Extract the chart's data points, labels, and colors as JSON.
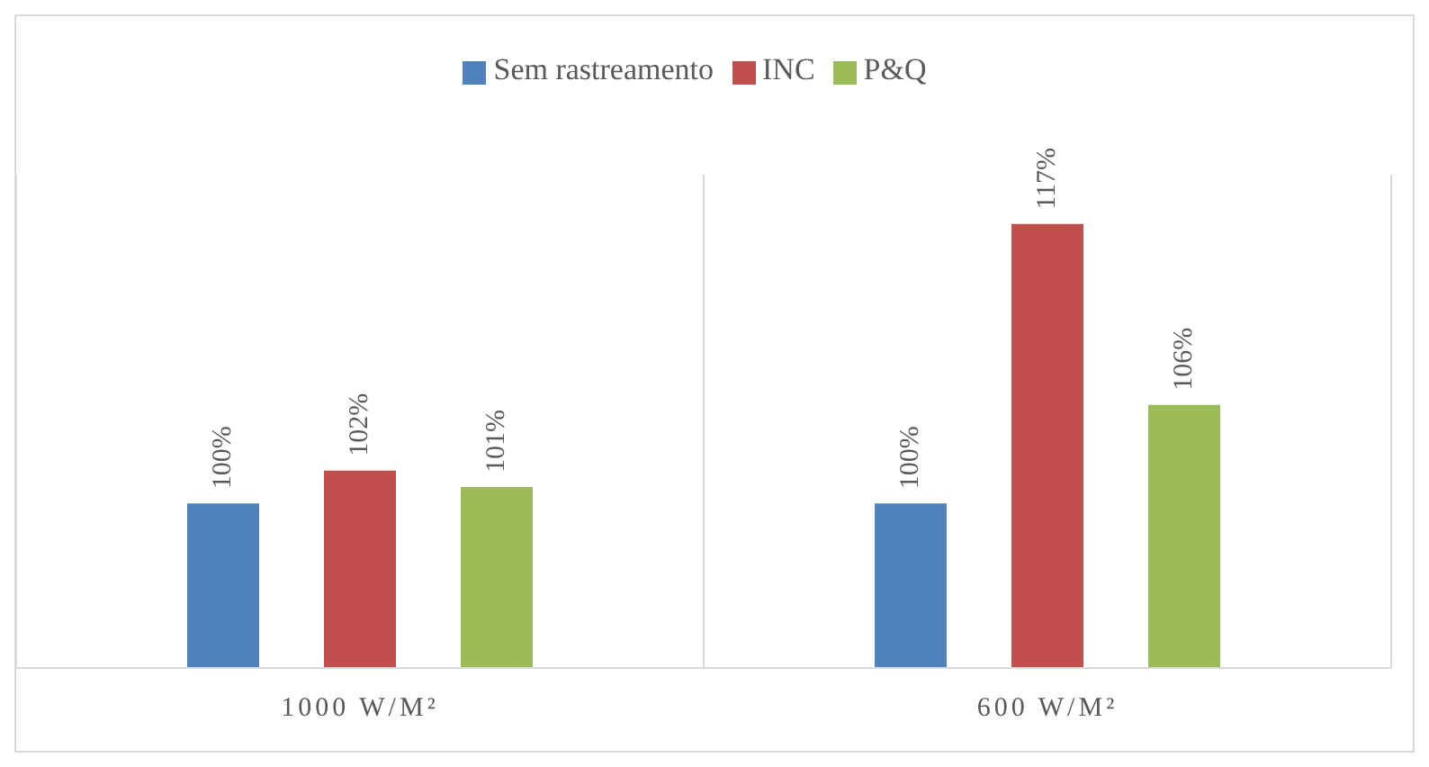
{
  "chart_data": {
    "type": "bar",
    "categories": [
      "1000 W/M²",
      "600 W/M²"
    ],
    "series": [
      {
        "name": "Sem rastreamento",
        "color": "#4f81bd",
        "values": [
          100,
          100
        ],
        "value_labels": [
          "100%",
          "100%"
        ]
      },
      {
        "name": "INC",
        "color": "#c0504d",
        "values": [
          102,
          117
        ],
        "value_labels": [
          "102%",
          "117%"
        ]
      },
      {
        "name": "P&Q",
        "color": "#9bbb59",
        "values": [
          101,
          106
        ],
        "value_labels": [
          "101%",
          "106%"
        ]
      }
    ],
    "ylim": [
      90,
      120
    ],
    "grid": "x",
    "legend": "top",
    "tick_labels": "x"
  }
}
